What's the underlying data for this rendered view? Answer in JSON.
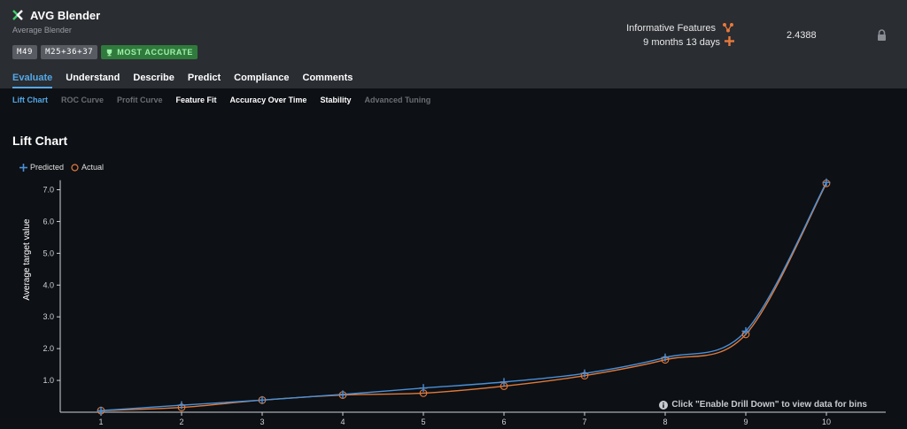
{
  "header": {
    "title": "AVG Blender",
    "subtitle": "Average Blender",
    "tags": [
      "M49",
      "M25+36+37"
    ],
    "badge": "MOST ACCURATE",
    "features_label": "Informative Features",
    "age_label": "9 months 13 days",
    "score": "2.4388"
  },
  "tabs": [
    {
      "label": "Evaluate"
    },
    {
      "label": "Understand"
    },
    {
      "label": "Describe"
    },
    {
      "label": "Predict"
    },
    {
      "label": "Compliance"
    },
    {
      "label": "Comments"
    }
  ],
  "subtabs": [
    {
      "label": "Lift Chart"
    },
    {
      "label": "ROC Curve"
    },
    {
      "label": "Profit Curve"
    },
    {
      "label": "Feature Fit"
    },
    {
      "label": "Accuracy Over Time"
    },
    {
      "label": "Stability"
    },
    {
      "label": "Advanced Tuning"
    }
  ],
  "colors": {
    "accent": "#54a8e8",
    "predicted": "#4a90d9",
    "actual": "#e07a3c",
    "badge_green": "#2f7a3c"
  },
  "chart_data": {
    "type": "line",
    "title": "Lift Chart",
    "xlabel": "",
    "ylabel": "Average target value",
    "x": [
      1,
      2,
      3,
      4,
      5,
      6,
      7,
      8,
      9,
      10
    ],
    "xticks": [
      "1",
      "2",
      "3",
      "4",
      "5",
      "6",
      "7",
      "8",
      "9",
      "10"
    ],
    "yticks": [
      "1.0",
      "2.0",
      "3.0",
      "4.0",
      "5.0",
      "6.0",
      "7.0"
    ],
    "ylim": [
      0,
      7.3
    ],
    "legend": "top-left",
    "series": [
      {
        "name": "Predicted",
        "values": [
          0.05,
          0.22,
          0.38,
          0.56,
          0.76,
          0.95,
          1.22,
          1.72,
          2.55,
          7.23
        ]
      },
      {
        "name": "Actual",
        "values": [
          0.05,
          0.15,
          0.38,
          0.54,
          0.6,
          0.82,
          1.15,
          1.65,
          2.45,
          7.2
        ]
      }
    ]
  },
  "hint": "Click \"Enable Drill Down\" to view data for bins"
}
